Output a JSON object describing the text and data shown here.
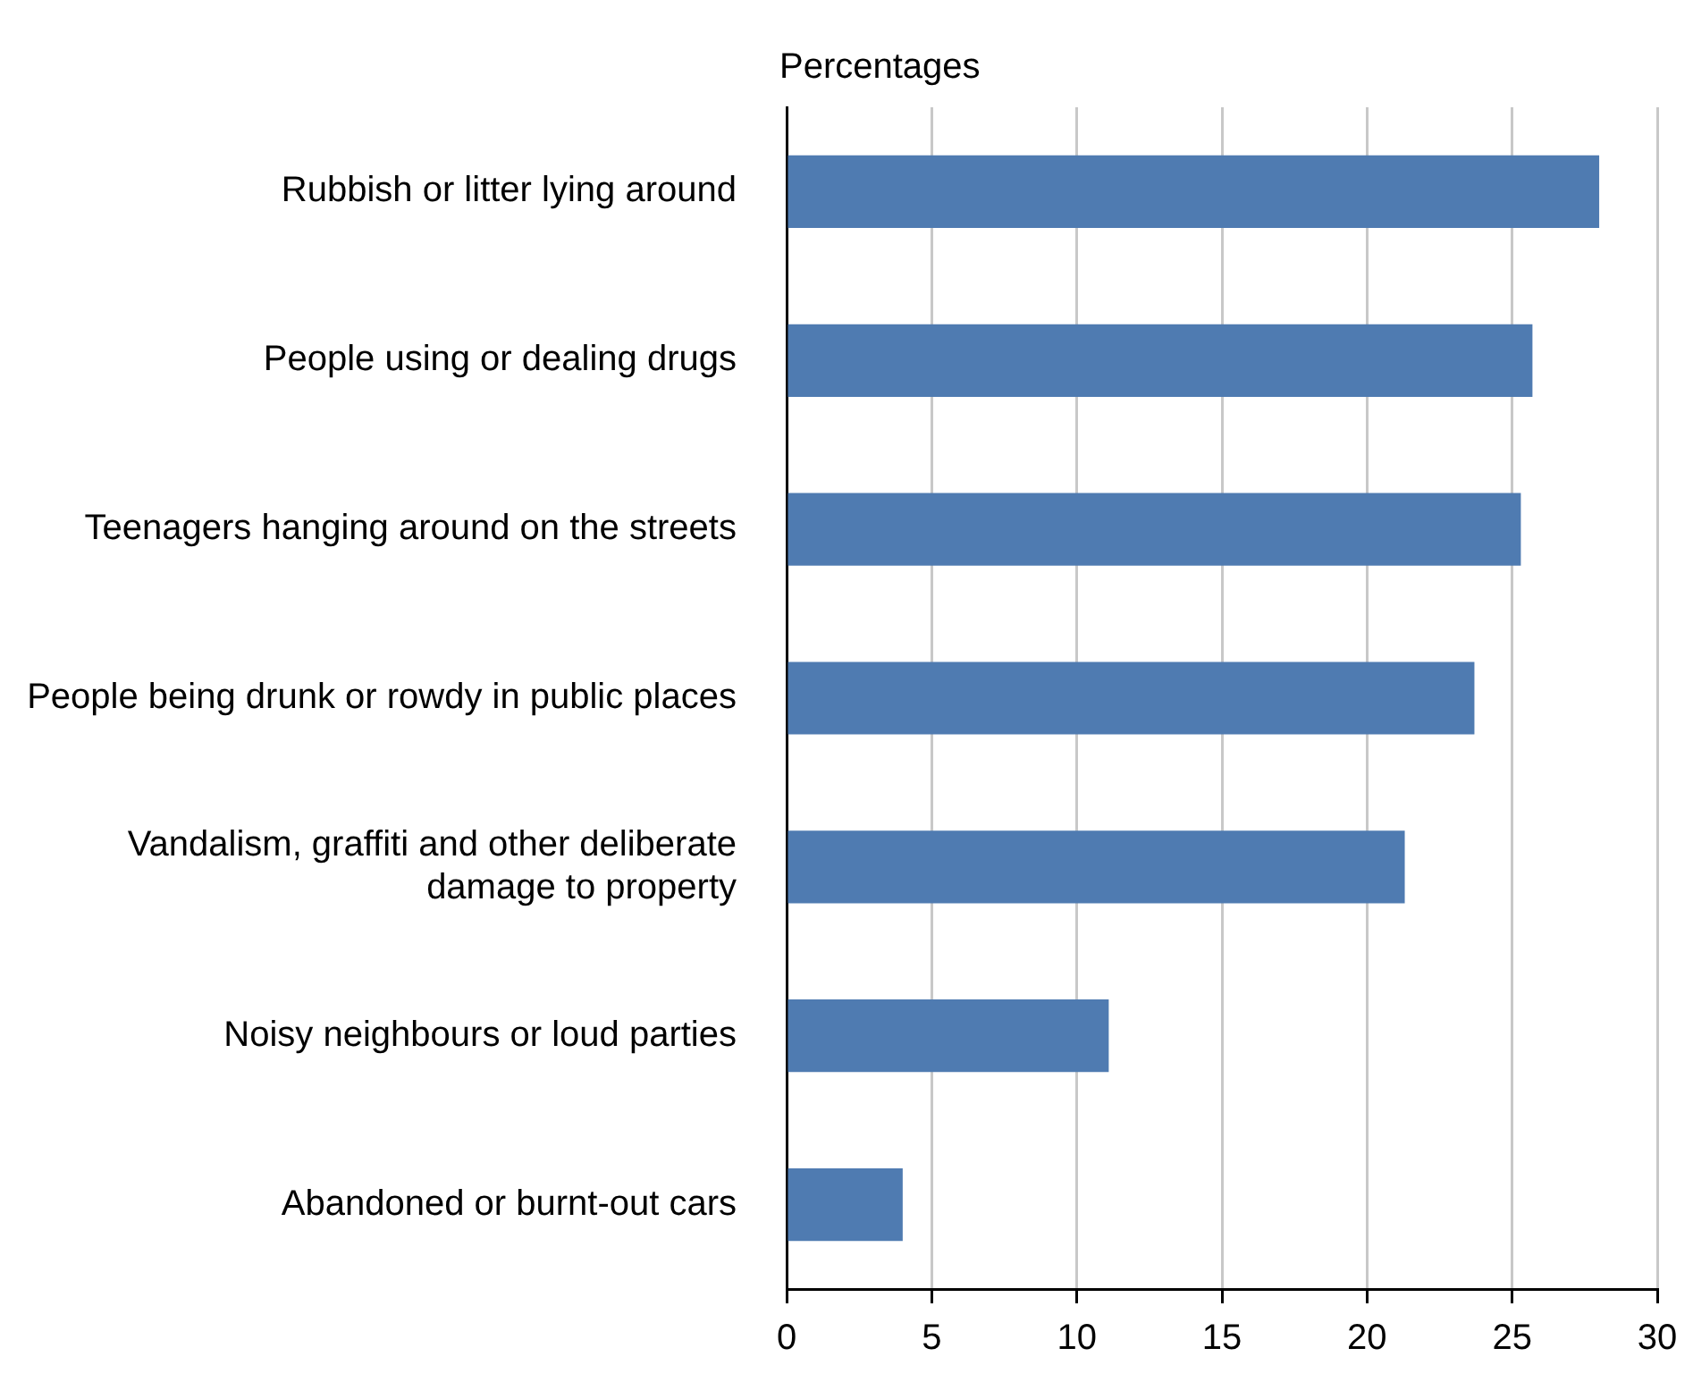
{
  "chart_data": {
    "type": "bar",
    "orientation": "horizontal",
    "xlabel": "Percentages",
    "categories": [
      "Rubbish or litter lying around",
      "People using or dealing drugs",
      "Teenagers hanging around on the streets",
      "People being drunk or rowdy in public places",
      "Vandalism, graffiti and other deliberate damage to property",
      "Noisy neighbours or loud parties",
      "Abandoned or burnt-out cars"
    ],
    "values": [
      28.0,
      25.7,
      25.3,
      23.7,
      21.3,
      11.1,
      4.0
    ],
    "color": "#4f7bb1",
    "xlim": [
      0,
      30
    ],
    "xticks": [
      0,
      5,
      10,
      15,
      20,
      25,
      30
    ],
    "grid": "x",
    "legend": false
  }
}
